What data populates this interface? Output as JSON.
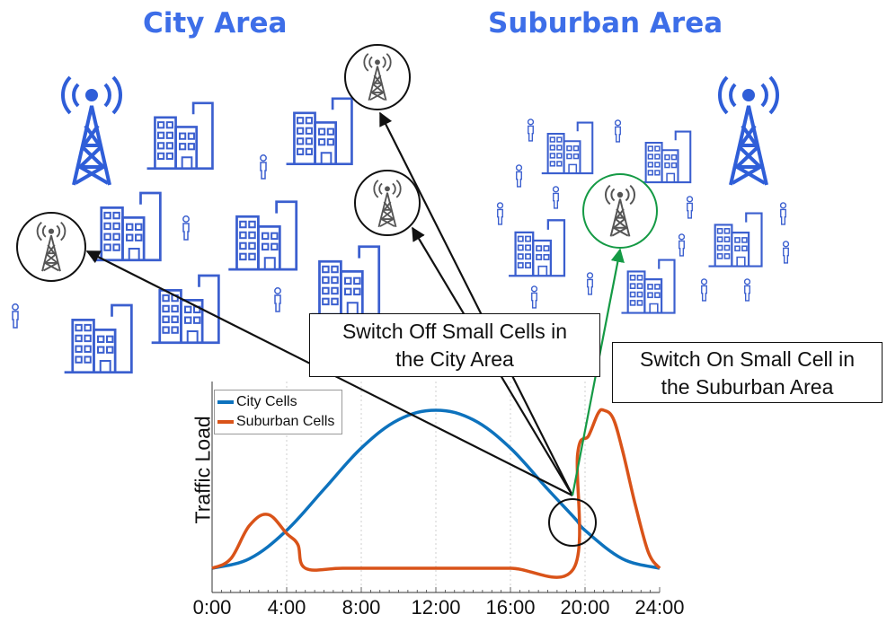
{
  "titles": {
    "city": "City Area",
    "suburban": "Suburban Area"
  },
  "callouts": {
    "switch_off": [
      "Switch Off Small Cells in",
      "the City Area"
    ],
    "switch_on": [
      "Switch On Small Cell in",
      "the Suburban Area"
    ]
  },
  "colors": {
    "title": "#3d6ee8",
    "building": "#3b5fcf",
    "tower": "#2f5ed8",
    "small_cell": "#555555",
    "city_series": "#0d72bd",
    "suburban_series": "#d95319",
    "switch_on_arrow": "#159a45",
    "switch_off_arrow": "#111111"
  },
  "icons": {
    "macro_tower": "radio-tower-icon",
    "small_cell": "cell-antenna-icon",
    "building": "office-building-icon",
    "person": "person-icon"
  },
  "chart_data": {
    "type": "line",
    "xlabel": "",
    "ylabel": "Traffic Load",
    "x_ticks": [
      "0:00",
      "4:00",
      "8:00",
      "12:00",
      "16:00",
      "20:00",
      "24:00"
    ],
    "xlim": [
      0,
      24
    ],
    "ylim": [
      0,
      1
    ],
    "grid": "vertical dotted",
    "legend": "top-left",
    "series": [
      {
        "name": "City Cells",
        "x": [
          0,
          2,
          4,
          6,
          8,
          10,
          12,
          14,
          16,
          18,
          19.5,
          20,
          22,
          24
        ],
        "y": [
          0,
          0.06,
          0.24,
          0.5,
          0.76,
          0.94,
          1.0,
          0.94,
          0.76,
          0.5,
          0.31,
          0.24,
          0.06,
          0
        ]
      },
      {
        "name": "Suburban Cells",
        "x": [
          0,
          1,
          2,
          3,
          4,
          4.6,
          5,
          7,
          10,
          13,
          16,
          19.4,
          19.6,
          20.2,
          20.7,
          21,
          21.5,
          22,
          22.7,
          23.4,
          24
        ],
        "y": [
          0,
          0.06,
          0.27,
          0.34,
          0.22,
          0.15,
          0,
          0,
          0,
          0,
          0,
          0,
          0.72,
          0.84,
          0.98,
          1.0,
          0.95,
          0.75,
          0.4,
          0.1,
          0
        ]
      }
    ]
  }
}
